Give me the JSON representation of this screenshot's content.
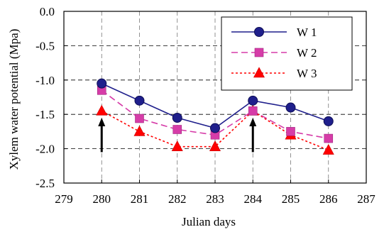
{
  "chart_data": {
    "type": "line",
    "title": "",
    "xlabel": "Julian days",
    "ylabel": "Xylem water potential (Mpa)",
    "xlim": [
      279,
      287
    ],
    "ylim": [
      -2.5,
      0.0
    ],
    "x_ticks": [
      "279",
      "280",
      "281",
      "282",
      "283",
      "284",
      "285",
      "286",
      "287"
    ],
    "y_ticks": [
      "0.0",
      "-0.5",
      "-1.0",
      "-1.5",
      "-2.0",
      "-2.5"
    ],
    "grid": "dashed gridlines",
    "legend_position": "top-right",
    "x": [
      280,
      281,
      282,
      283,
      284,
      285,
      286
    ],
    "series": [
      {
        "name": "W 1",
        "values": [
          -1.05,
          -1.3,
          -1.55,
          -1.7,
          -1.3,
          -1.4,
          -1.6
        ],
        "color": "#1f1f8c",
        "marker": "circle",
        "line": "solid"
      },
      {
        "name": "W 2",
        "values": [
          -1.15,
          -1.56,
          -1.72,
          -1.8,
          -1.45,
          -1.75,
          -1.85
        ],
        "color": "#d63ca8",
        "marker": "square",
        "line": "dashed"
      },
      {
        "name": "W 3",
        "values": [
          -1.45,
          -1.75,
          -1.97,
          -1.97,
          -1.45,
          -1.8,
          -2.02
        ],
        "color": "#ff0000",
        "marker": "triangle",
        "line": "dotted"
      }
    ],
    "annotations": [
      {
        "type": "arrow",
        "x": 280,
        "from_y": -2.05,
        "to_y": -1.55
      },
      {
        "type": "arrow",
        "x": 284,
        "from_y": -2.05,
        "to_y": -1.55
      }
    ]
  }
}
